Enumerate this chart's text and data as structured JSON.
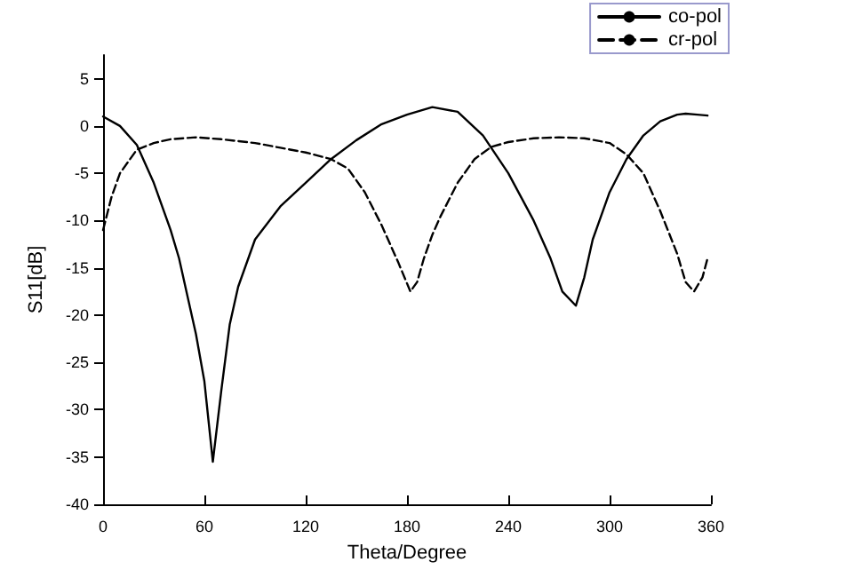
{
  "chart_data": {
    "type": "line",
    "xlabel": "Theta/Degree",
    "ylabel": "S11[dB]",
    "xlim": [
      0,
      360
    ],
    "xticks": [
      0,
      60,
      120,
      180,
      240,
      300,
      360
    ],
    "ylim": [
      -40,
      7.5
    ],
    "yticks": [
      -40,
      -35,
      -30,
      -25,
      -20,
      -15,
      -10,
      -5,
      0,
      5
    ],
    "grid": false,
    "legend": "top right",
    "marker": "none",
    "series": [
      {
        "name": "co-pol",
        "color": "#000000",
        "line_style": "solid",
        "x": [
          0,
          10,
          20,
          30,
          40,
          45,
          50,
          55,
          60,
          65,
          70,
          75,
          80,
          90,
          105,
          120,
          135,
          150,
          165,
          180,
          195,
          210,
          225,
          240,
          255,
          265,
          272,
          280,
          285,
          290,
          300,
          310,
          320,
          330,
          340,
          345,
          352,
          358
        ],
        "values": [
          1,
          0,
          -2,
          -6,
          -11,
          -14,
          -18,
          -22,
          -27,
          -35.5,
          -28,
          -21,
          -17,
          -12,
          -8.5,
          -6,
          -3.5,
          -1.5,
          0.2,
          1.2,
          2,
          1.5,
          -1,
          -5,
          -10,
          -14,
          -17.5,
          -19,
          -16,
          -12,
          -7,
          -3.5,
          -1,
          0.5,
          1.2,
          1.3,
          1.2,
          1.1
        ]
      },
      {
        "name": "cr-pol",
        "color": "#000000",
        "line_style": "dashed",
        "x": [
          0,
          5,
          10,
          20,
          30,
          40,
          55,
          70,
          90,
          105,
          120,
          135,
          145,
          155,
          165,
          175,
          182,
          186,
          190,
          195,
          200,
          210,
          220,
          230,
          240,
          255,
          270,
          285,
          300,
          310,
          320,
          330,
          340,
          345,
          350,
          355,
          358
        ],
        "values": [
          -11,
          -7.5,
          -5,
          -2.5,
          -1.8,
          -1.4,
          -1.2,
          -1.4,
          -1.8,
          -2.3,
          -2.8,
          -3.5,
          -4.5,
          -7,
          -10.5,
          -14.5,
          -17.5,
          -16.5,
          -14,
          -11.5,
          -9.5,
          -6,
          -3.5,
          -2.2,
          -1.7,
          -1.3,
          -1.2,
          -1.3,
          -1.8,
          -3,
          -5,
          -9,
          -13.5,
          -16.5,
          -17.5,
          -16,
          -14
        ]
      }
    ]
  }
}
